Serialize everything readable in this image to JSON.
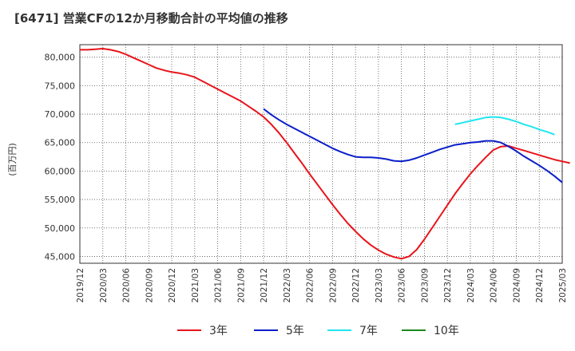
{
  "chart_data": {
    "type": "line",
    "title": "[6471]  営業CFの12か月移動合計の平均値の推移",
    "ylabel": "(百万円)",
    "xlabel": "",
    "ylim": [
      43800,
      82200
    ],
    "yticks": [
      45000,
      50000,
      55000,
      60000,
      65000,
      70000,
      75000,
      80000
    ],
    "ytick_labels": [
      "45,000",
      "50,000",
      "55,000",
      "60,000",
      "65,000",
      "70,000",
      "75,000",
      "80,000"
    ],
    "xticks": [
      "2019/12",
      "2020/03",
      "2020/06",
      "2020/09",
      "2020/12",
      "2021/03",
      "2021/06",
      "2021/09",
      "2021/12",
      "2022/03",
      "2022/06",
      "2022/09",
      "2022/12",
      "2023/03",
      "2023/06",
      "2023/09",
      "2023/12",
      "2024/03",
      "2024/06",
      "2024/09",
      "2024/12",
      "2025/03"
    ],
    "grid": true,
    "legend_position": "bottom",
    "series": [
      {
        "name": "3年",
        "color": "#e8141b",
        "points": [
          [
            "2019/12",
            81300
          ],
          [
            "2020/01",
            81300
          ],
          [
            "2020/02",
            81400
          ],
          [
            "2020/03",
            81500
          ],
          [
            "2020/04",
            81300
          ],
          [
            "2020/05",
            81000
          ],
          [
            "2020/06",
            80500
          ],
          [
            "2020/07",
            79900
          ],
          [
            "2020/08",
            79300
          ],
          [
            "2020/09",
            78700
          ],
          [
            "2020/10",
            78100
          ],
          [
            "2020/11",
            77700
          ],
          [
            "2020/12",
            77400
          ],
          [
            "2021/01",
            77200
          ],
          [
            "2021/02",
            76900
          ],
          [
            "2021/03",
            76500
          ],
          [
            "2021/04",
            75800
          ],
          [
            "2021/05",
            75100
          ],
          [
            "2021/06",
            74400
          ],
          [
            "2021/07",
            73700
          ],
          [
            "2021/08",
            73000
          ],
          [
            "2021/09",
            72300
          ],
          [
            "2021/10",
            71400
          ],
          [
            "2021/11",
            70500
          ],
          [
            "2021/12",
            69500
          ],
          [
            "2022/01",
            68200
          ],
          [
            "2022/02",
            66700
          ],
          [
            "2022/03",
            65000
          ],
          [
            "2022/04",
            63200
          ],
          [
            "2022/05",
            61400
          ],
          [
            "2022/06",
            59500
          ],
          [
            "2022/07",
            57700
          ],
          [
            "2022/08",
            55900
          ],
          [
            "2022/09",
            54100
          ],
          [
            "2022/10",
            52400
          ],
          [
            "2022/11",
            50800
          ],
          [
            "2022/12",
            49400
          ],
          [
            "2023/01",
            48100
          ],
          [
            "2023/02",
            47000
          ],
          [
            "2023/03",
            46100
          ],
          [
            "2023/04",
            45400
          ],
          [
            "2023/05",
            44900
          ],
          [
            "2023/06",
            44600
          ],
          [
            "2023/07",
            45000
          ],
          [
            "2023/08",
            46200
          ],
          [
            "2023/09",
            48000
          ],
          [
            "2023/10",
            50000
          ],
          [
            "2023/11",
            52000
          ],
          [
            "2023/12",
            54000
          ],
          [
            "2024/01",
            56000
          ],
          [
            "2024/02",
            57800
          ],
          [
            "2024/03",
            59500
          ],
          [
            "2024/04",
            61000
          ],
          [
            "2024/05",
            62400
          ],
          [
            "2024/06",
            63700
          ],
          [
            "2024/07",
            64300
          ],
          [
            "2024/08",
            64400
          ],
          [
            "2024/09",
            64000
          ],
          [
            "2024/10",
            63600
          ],
          [
            "2024/11",
            63200
          ],
          [
            "2024/12",
            62800
          ],
          [
            "2025/01",
            62400
          ],
          [
            "2025/02",
            62000
          ],
          [
            "2025/03",
            61700
          ],
          [
            "2025/04",
            61400
          ]
        ]
      },
      {
        "name": "5年",
        "color": "#0a1ec8",
        "points": [
          [
            "2021/12",
            70900
          ],
          [
            "2022/01",
            69900
          ],
          [
            "2022/02",
            69000
          ],
          [
            "2022/03",
            68200
          ],
          [
            "2022/04",
            67500
          ],
          [
            "2022/05",
            66800
          ],
          [
            "2022/06",
            66100
          ],
          [
            "2022/07",
            65400
          ],
          [
            "2022/08",
            64700
          ],
          [
            "2022/09",
            64000
          ],
          [
            "2022/10",
            63400
          ],
          [
            "2022/11",
            62900
          ],
          [
            "2022/12",
            62500
          ],
          [
            "2023/01",
            62400
          ],
          [
            "2023/02",
            62400
          ],
          [
            "2023/03",
            62300
          ],
          [
            "2023/04",
            62100
          ],
          [
            "2023/05",
            61800
          ],
          [
            "2023/06",
            61700
          ],
          [
            "2023/07",
            61900
          ],
          [
            "2023/08",
            62300
          ],
          [
            "2023/09",
            62800
          ],
          [
            "2023/10",
            63300
          ],
          [
            "2023/11",
            63800
          ],
          [
            "2023/12",
            64200
          ],
          [
            "2024/01",
            64600
          ],
          [
            "2024/02",
            64800
          ],
          [
            "2024/03",
            65000
          ],
          [
            "2024/04",
            65100
          ],
          [
            "2024/05",
            65300
          ],
          [
            "2024/06",
            65300
          ],
          [
            "2024/07",
            65000
          ],
          [
            "2024/08",
            64300
          ],
          [
            "2024/09",
            63500
          ],
          [
            "2024/10",
            62600
          ],
          [
            "2024/11",
            61800
          ],
          [
            "2024/12",
            61000
          ],
          [
            "2025/01",
            60100
          ],
          [
            "2025/02",
            59100
          ],
          [
            "2025/03",
            58000
          ]
        ]
      },
      {
        "name": "7年",
        "color": "#1ee6f0",
        "points": [
          [
            "2024/01",
            68200
          ],
          [
            "2024/02",
            68500
          ],
          [
            "2024/03",
            68800
          ],
          [
            "2024/04",
            69100
          ],
          [
            "2024/05",
            69400
          ],
          [
            "2024/06",
            69500
          ],
          [
            "2024/07",
            69400
          ],
          [
            "2024/08",
            69100
          ],
          [
            "2024/09",
            68700
          ],
          [
            "2024/10",
            68200
          ],
          [
            "2024/11",
            67800
          ],
          [
            "2024/12",
            67300
          ],
          [
            "2025/01",
            66900
          ],
          [
            "2025/02",
            66400
          ]
        ]
      },
      {
        "name": "10年",
        "color": "#1a8a1a",
        "points": []
      }
    ]
  }
}
